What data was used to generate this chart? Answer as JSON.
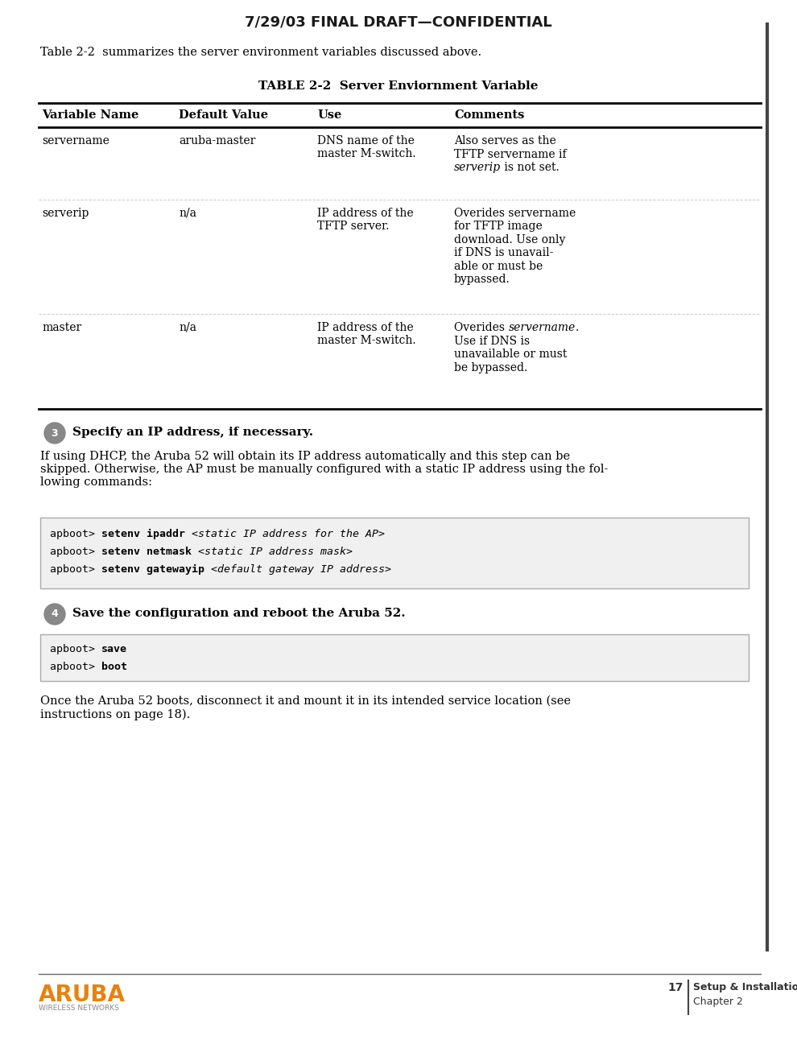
{
  "page_width": 9.9,
  "page_height": 12.97,
  "dpi": 100,
  "bg_color": "#ffffff",
  "header_text": "7/29/03 FINAL DRAFT—CONFIDENTIAL",
  "intro_text": "Table 2-2  summarizes the server environment variables discussed above.",
  "table_title": "TABLE 2-2  Server Enviornment Variable",
  "col_headers": [
    "Variable Name",
    "Default Value",
    "Use",
    "Comments"
  ],
  "table_rows": [
    {
      "variable": "servername",
      "default": "aruba-master",
      "use": "DNS name of the\nmaster M-switch.",
      "comments_parts": [
        {
          "text": "Also serves as the\nTFTP servername if\n",
          "italic": false
        },
        {
          "text": "serverip",
          "italic": true
        },
        {
          "text": " is not set.",
          "italic": false
        }
      ]
    },
    {
      "variable": "serverip",
      "default": "n/a",
      "use": "IP address of the\nTFTP server.",
      "comments_parts": [
        {
          "text": "Overides servername\nfor TFTP image\ndownload. Use only\nif DNS is unavail-\nable or must be\nbypassed.",
          "italic": false
        }
      ]
    },
    {
      "variable": "master",
      "default": "n/a",
      "use": "IP address of the\nmaster M-switch.",
      "comments_parts": [
        {
          "text": "Overides ",
          "italic": false
        },
        {
          "text": "servername",
          "italic": true
        },
        {
          "text": ".\nUse if DNS is\nunavailable or must\nbe bypassed.",
          "italic": false
        }
      ]
    }
  ],
  "step3_num": "3",
  "step3_title": "Specify an IP address, if necessary.",
  "step3_body": "If using DHCP, the Aruba 52 will obtain its IP address automatically and this step can be\nskipped. Otherwise, the AP must be manually configured with a static IP address using the fol-\nlowing commands:",
  "code_box1_lines": [
    [
      "apboot> ",
      "setenv ipaddr ",
      "<static IP address for the AP>"
    ],
    [
      "apboot> ",
      "setenv netmask ",
      "<static IP address mask>"
    ],
    [
      "apboot> ",
      "setenv gatewayip ",
      "<default gateway IP address>"
    ]
  ],
  "step4_num": "4",
  "step4_title": "Save the configuration and reboot the Aruba 52.",
  "code_box2_lines": [
    [
      "apboot> ",
      "save",
      ""
    ],
    [
      "apboot> ",
      "boot",
      ""
    ]
  ],
  "step4_body": "Once the Aruba 52 boots, disconnect it and mount it in its intended service location (see\ninstructions on page 18).",
  "footer_logo": "ARUBA",
  "footer_sub": "WIRELESS NETWORKS",
  "footer_section": "Setup & Installation",
  "footer_page": "17",
  "footer_chapter": "Chapter 2",
  "aruba_orange": "#e8820c",
  "step_circle_bg": "#888888",
  "code_box_bg": "#f0f0f0",
  "code_box_border": "#aaaaaa"
}
